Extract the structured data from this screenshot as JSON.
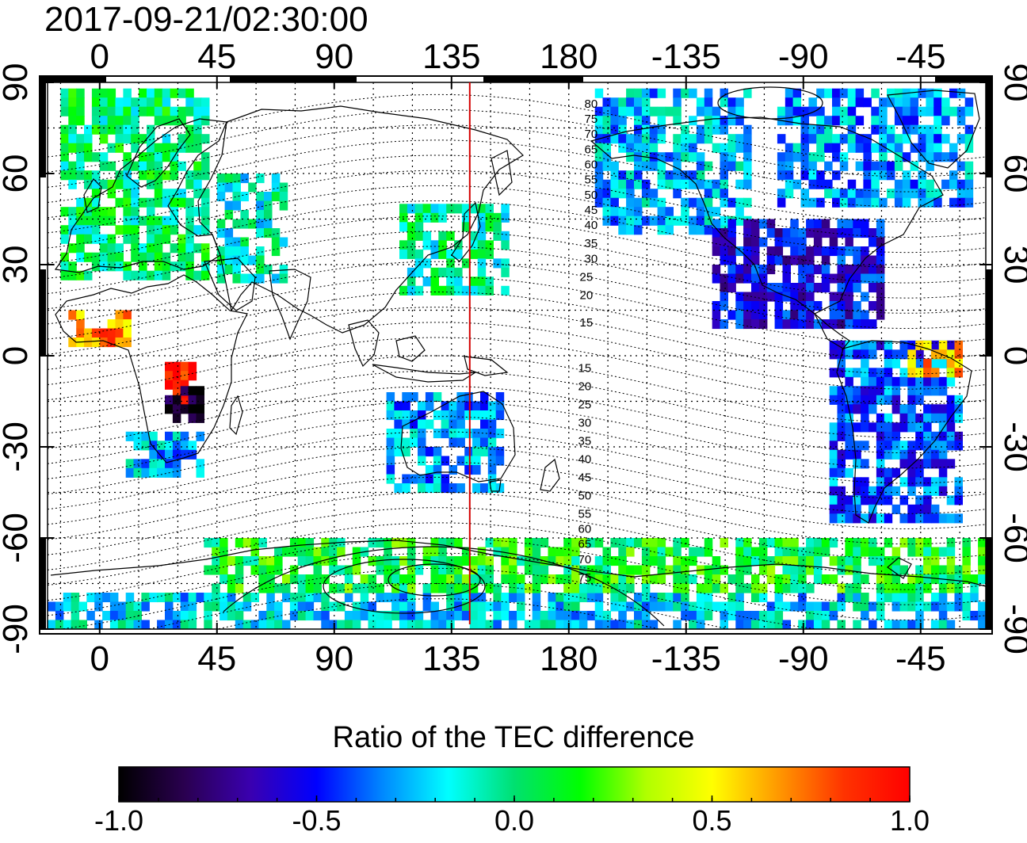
{
  "timestamp": "2017-09-21/02:30:00",
  "map": {
    "type": "global-map",
    "projection": "equirectangular",
    "lon_ticks_top": [
      "0",
      "45",
      "90",
      "135",
      "180",
      "-135",
      "-90",
      "-45"
    ],
    "lon_ticks_bottom": [
      "0",
      "45",
      "90",
      "135",
      "180",
      "-135",
      "-90",
      "-45"
    ],
    "lat_ticks": [
      "90",
      "60",
      "30",
      "0",
      "-30",
      "-60",
      "-90"
    ],
    "lon_tick_values": [
      0,
      45,
      90,
      135,
      180,
      225,
      270,
      315
    ],
    "lat_tick_values": [
      90,
      60,
      30,
      0,
      -30,
      -60,
      -90
    ],
    "lon_range": [
      -20,
      340
    ],
    "lat_range": [
      -90,
      90
    ],
    "grid": true,
    "meridian_line": {
      "longitude": 142,
      "color": "#d40000"
    },
    "contour_labels_north": [
      "80",
      "75",
      "70",
      "65",
      "60",
      "55",
      "50",
      "45",
      "40",
      "35",
      "30",
      "25",
      "20",
      "15"
    ],
    "contour_labels_south": [
      "15",
      "20",
      "25",
      "30",
      "35",
      "40",
      "45",
      "50",
      "55",
      "60",
      "65",
      "70",
      "75"
    ],
    "contour_label_lats": [
      83,
      78,
      73,
      68,
      63,
      58,
      53,
      48,
      43,
      37,
      32,
      26,
      20,
      11
    ],
    "contour_label_lats_south": [
      -4,
      -10,
      -16,
      -22,
      -28,
      -34,
      -40,
      -46,
      -52,
      -57,
      -62,
      -67,
      -73
    ]
  },
  "colorbar": {
    "title": "Ratio of the TEC difference",
    "ticks": [
      "-1.0",
      "-0.5",
      "0.0",
      "0.5",
      "1.0"
    ],
    "tick_values": [
      -1.0,
      -0.5,
      0.0,
      0.5,
      1.0
    ],
    "range": [
      -1.0,
      1.0
    ],
    "colors": [
      "#000000",
      "#2a0050",
      "#3a00b0",
      "#0000ff",
      "#0088ff",
      "#00ffff",
      "#00e070",
      "#00ff00",
      "#b0ff00",
      "#ffff00",
      "#ff9900",
      "#ff3300",
      "#ff0000"
    ]
  },
  "chart_data": {
    "type": "heatmap",
    "title": "2017-09-21/02:30:00",
    "xlabel": "",
    "ylabel": "",
    "xlim": [
      -20,
      340
    ],
    "ylim": [
      -90,
      90
    ],
    "colorbar_label": "Ratio of the TEC difference",
    "colorbar_range": [
      -1.0,
      1.0
    ],
    "regions": [
      {
        "lon": [
          -15,
          40
        ],
        "lat": [
          25,
          88
        ],
        "value": 0.0
      },
      {
        "lon": [
          45,
          70
        ],
        "lat": [
          25,
          60
        ],
        "value": -0.1
      },
      {
        "lon": [
          -12,
          10
        ],
        "lat": [
          5,
          15
        ],
        "value": 0.7
      },
      {
        "lon": [
          25,
          40
        ],
        "lat": [
          -15,
          -2
        ],
        "value": 0.95
      },
      {
        "lon": [
          25,
          40
        ],
        "lat": [
          -20,
          -10
        ],
        "value": -0.95
      },
      {
        "lon": [
          10,
          38
        ],
        "lat": [
          -38,
          -25
        ],
        "value": -0.25
      },
      {
        "lon": [
          115,
          155
        ],
        "lat": [
          20,
          50
        ],
        "value": -0.05
      },
      {
        "lon": [
          110,
          155
        ],
        "lat": [
          -45,
          -12
        ],
        "value": -0.3
      },
      {
        "lon": [
          190,
          250
        ],
        "lat": [
          40,
          88
        ],
        "value": -0.25
      },
      {
        "lon": [
          235,
          300
        ],
        "lat": [
          10,
          45
        ],
        "value": -0.55
      },
      {
        "lon": [
          280,
          330
        ],
        "lat": [
          -55,
          5
        ],
        "value": -0.4
      },
      {
        "lon": [
          310,
          330
        ],
        "lat": [
          -5,
          5
        ],
        "value": 0.6
      },
      {
        "lon": [
          -20,
          340
        ],
        "lat": [
          -90,
          -78
        ],
        "value": -0.2
      },
      {
        "lon": [
          40,
          340
        ],
        "lat": [
          -78,
          -60
        ],
        "value": 0.1
      },
      {
        "lon": [
          260,
          335
        ],
        "lat": [
          50,
          88
        ],
        "value": -0.3
      }
    ]
  }
}
